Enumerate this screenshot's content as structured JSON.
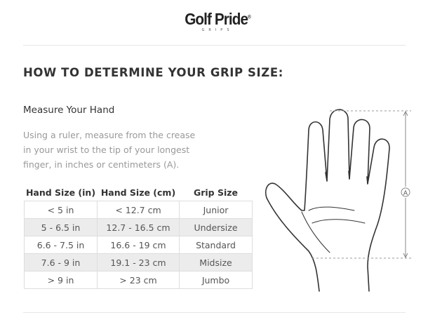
{
  "logo": {
    "brand": "Golf Pride",
    "registered": "®",
    "sub": "GRIPS"
  },
  "title": "HOW TO DETERMINE YOUR GRIP SIZE:",
  "subtitle": "Measure Your Hand",
  "description": "Using a ruler, measure from the crease in your wrist to the tip of your longest finger, in inches or centimeters (A).",
  "table": {
    "headers": [
      "Hand Size (in)",
      "Hand Size (cm)",
      "Grip Size"
    ],
    "rows": [
      [
        "< 5 in",
        "< 12.7 cm",
        "Junior"
      ],
      [
        "5 - 6.5 in",
        "12.7 - 16.5 cm",
        "Undersize"
      ],
      [
        "6.6 - 7.5 in",
        "16.6 - 19 cm",
        "Standard"
      ],
      [
        "7.6 - 9 in",
        "19.1 - 23 cm",
        "Midsize"
      ],
      [
        "> 9 in",
        "> 23 cm",
        "Jumbo"
      ]
    ]
  },
  "diagram": {
    "marker": "A"
  }
}
